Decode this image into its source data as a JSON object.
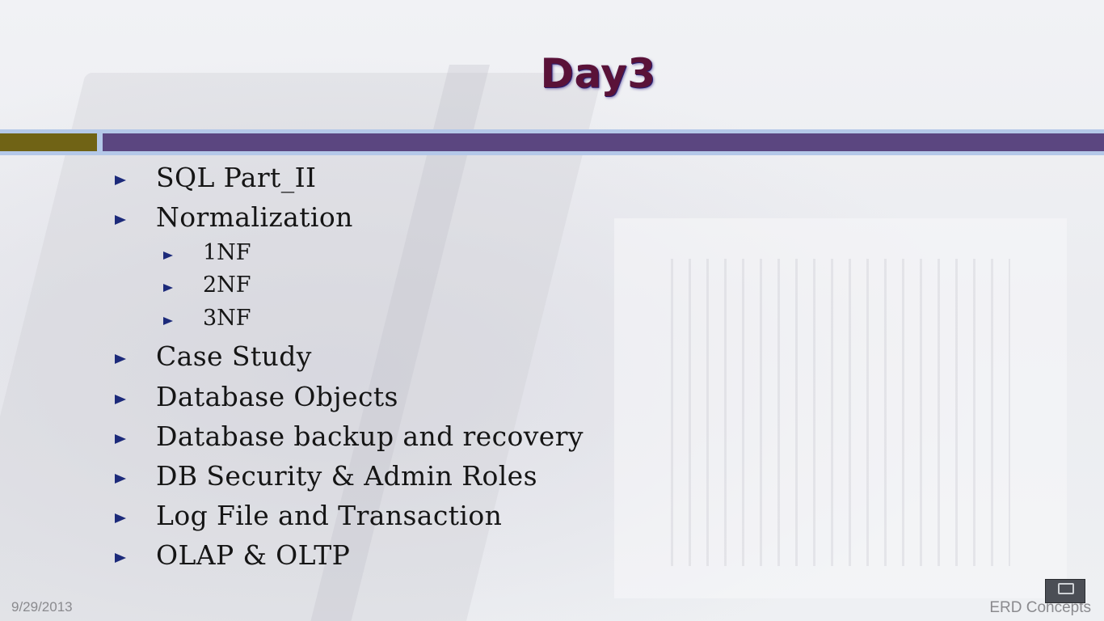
{
  "slide": {
    "title": "Day3",
    "items": [
      {
        "text": "SQL Part_II",
        "level": 1
      },
      {
        "text": "Normalization",
        "level": 1
      },
      {
        "text": "1NF",
        "level": 2
      },
      {
        "text": "2NF",
        "level": 2
      },
      {
        "text": "3NF",
        "level": 2
      },
      {
        "text": "Case Study",
        "level": 1
      },
      {
        "text": "Database Objects",
        "level": 1
      },
      {
        "text": "Database backup and recovery",
        "level": 1
      },
      {
        "text": "DB Security & Admin Roles",
        "level": 1
      },
      {
        "text": "Log File and Transaction",
        "level": 1
      },
      {
        "text": "OLAP & OLTP",
        "level": 1
      }
    ],
    "footer": {
      "date": "9/29/2013",
      "brand": "ERD Concepts"
    }
  },
  "colors": {
    "title": "#5a1238",
    "bar_accent": "#706315",
    "bar_main": "#5b4680",
    "bullet": "#1c2a7a"
  }
}
